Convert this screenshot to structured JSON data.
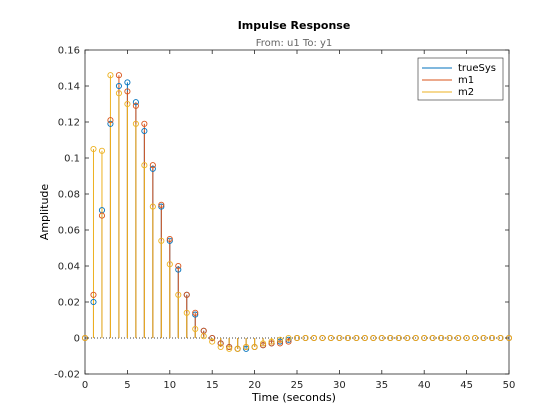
{
  "chart_data": {
    "type": "stem",
    "title": "Impulse Response",
    "subtitle": "From: u1  To: y1",
    "xlabel": "Time (seconds)",
    "ylabel": "Amplitude",
    "xlim": [
      0,
      50
    ],
    "ylim": [
      -0.02,
      0.16
    ],
    "xticks": [
      "0",
      "5",
      "10",
      "15",
      "20",
      "25",
      "30",
      "35",
      "40",
      "45",
      "50"
    ],
    "yticks": [
      "-0.02",
      "0",
      "0.02",
      "0.04",
      "0.06",
      "0.08",
      "0.1",
      "0.12",
      "0.14",
      "0.16"
    ],
    "grid": false,
    "legend_position": "top-right",
    "series": [
      {
        "name": "trueSys",
        "color": "#0072BD",
        "x": [
          0,
          1,
          2,
          3,
          4,
          5,
          6,
          7,
          8,
          9,
          10,
          11,
          12,
          13,
          14,
          15,
          16,
          17,
          18,
          19,
          20,
          21,
          22,
          23,
          24,
          25,
          26,
          27,
          28,
          29,
          30,
          31,
          32,
          33,
          34,
          35,
          36,
          37,
          38,
          39,
          40,
          41,
          42,
          43,
          44,
          45,
          46,
          47,
          48,
          49,
          50
        ],
        "y": [
          0,
          0.02,
          0.071,
          0.119,
          0.14,
          0.142,
          0.131,
          0.115,
          0.094,
          0.073,
          0.054,
          0.038,
          0.024,
          0.013,
          0.004,
          0,
          -0.003,
          -0.005,
          -0.006,
          -0.006,
          -0.005,
          -0.004,
          -0.003,
          -0.002,
          -0.001,
          0,
          0,
          0,
          0,
          0,
          0,
          0,
          0,
          0,
          0,
          0,
          0,
          0,
          0,
          0,
          0,
          0,
          0,
          0,
          0,
          0,
          0,
          0,
          0,
          0,
          0
        ]
      },
      {
        "name": "m1",
        "color": "#D95319",
        "x": [
          0,
          1,
          2,
          3,
          4,
          5,
          6,
          7,
          8,
          9,
          10,
          11,
          12,
          13,
          14,
          15,
          16,
          17,
          18,
          19,
          20,
          21,
          22,
          23,
          24,
          25,
          26,
          27,
          28,
          29,
          30,
          31,
          32,
          33,
          34,
          35,
          36,
          37,
          38,
          39,
          40,
          41,
          42,
          43,
          44,
          45,
          46,
          47,
          48,
          49,
          50
        ],
        "y": [
          0,
          0.024,
          0.068,
          0.121,
          0.146,
          0.137,
          0.129,
          0.119,
          0.096,
          0.074,
          0.055,
          0.04,
          0.024,
          0.014,
          0.004,
          0,
          -0.003,
          -0.005,
          -0.006,
          -0.005,
          -0.005,
          -0.004,
          -0.003,
          -0.003,
          -0.002,
          0,
          0,
          0,
          0,
          0,
          0,
          0,
          0,
          0,
          0,
          0,
          0,
          0,
          0,
          0,
          0,
          0,
          0,
          0,
          0,
          0,
          0,
          0,
          0,
          0,
          0
        ]
      },
      {
        "name": "m2",
        "color": "#EDB120",
        "x": [
          0,
          1,
          2,
          3,
          4,
          5,
          6,
          7,
          8,
          9,
          10,
          11,
          12,
          13,
          14,
          15,
          16,
          17,
          18,
          19,
          20,
          21,
          22,
          23,
          24,
          25,
          26,
          27,
          28,
          29,
          30,
          31,
          32,
          33,
          34,
          35,
          36,
          37,
          38,
          39,
          40,
          41,
          42,
          43,
          44,
          45,
          46,
          47,
          48,
          49,
          50
        ],
        "y": [
          0,
          0.105,
          0.104,
          0.146,
          0.136,
          0.13,
          0.119,
          0.096,
          0.073,
          0.054,
          0.041,
          0.024,
          0.014,
          0.005,
          0.001,
          -0.002,
          -0.005,
          -0.006,
          -0.006,
          -0.005,
          -0.005,
          -0.003,
          -0.002,
          -0.001,
          0,
          0,
          0,
          0,
          0,
          0,
          0,
          0,
          0,
          0,
          0,
          0,
          0,
          0,
          0,
          0,
          0,
          0,
          0,
          0,
          0,
          0,
          0,
          0,
          0,
          0,
          0
        ]
      }
    ]
  }
}
